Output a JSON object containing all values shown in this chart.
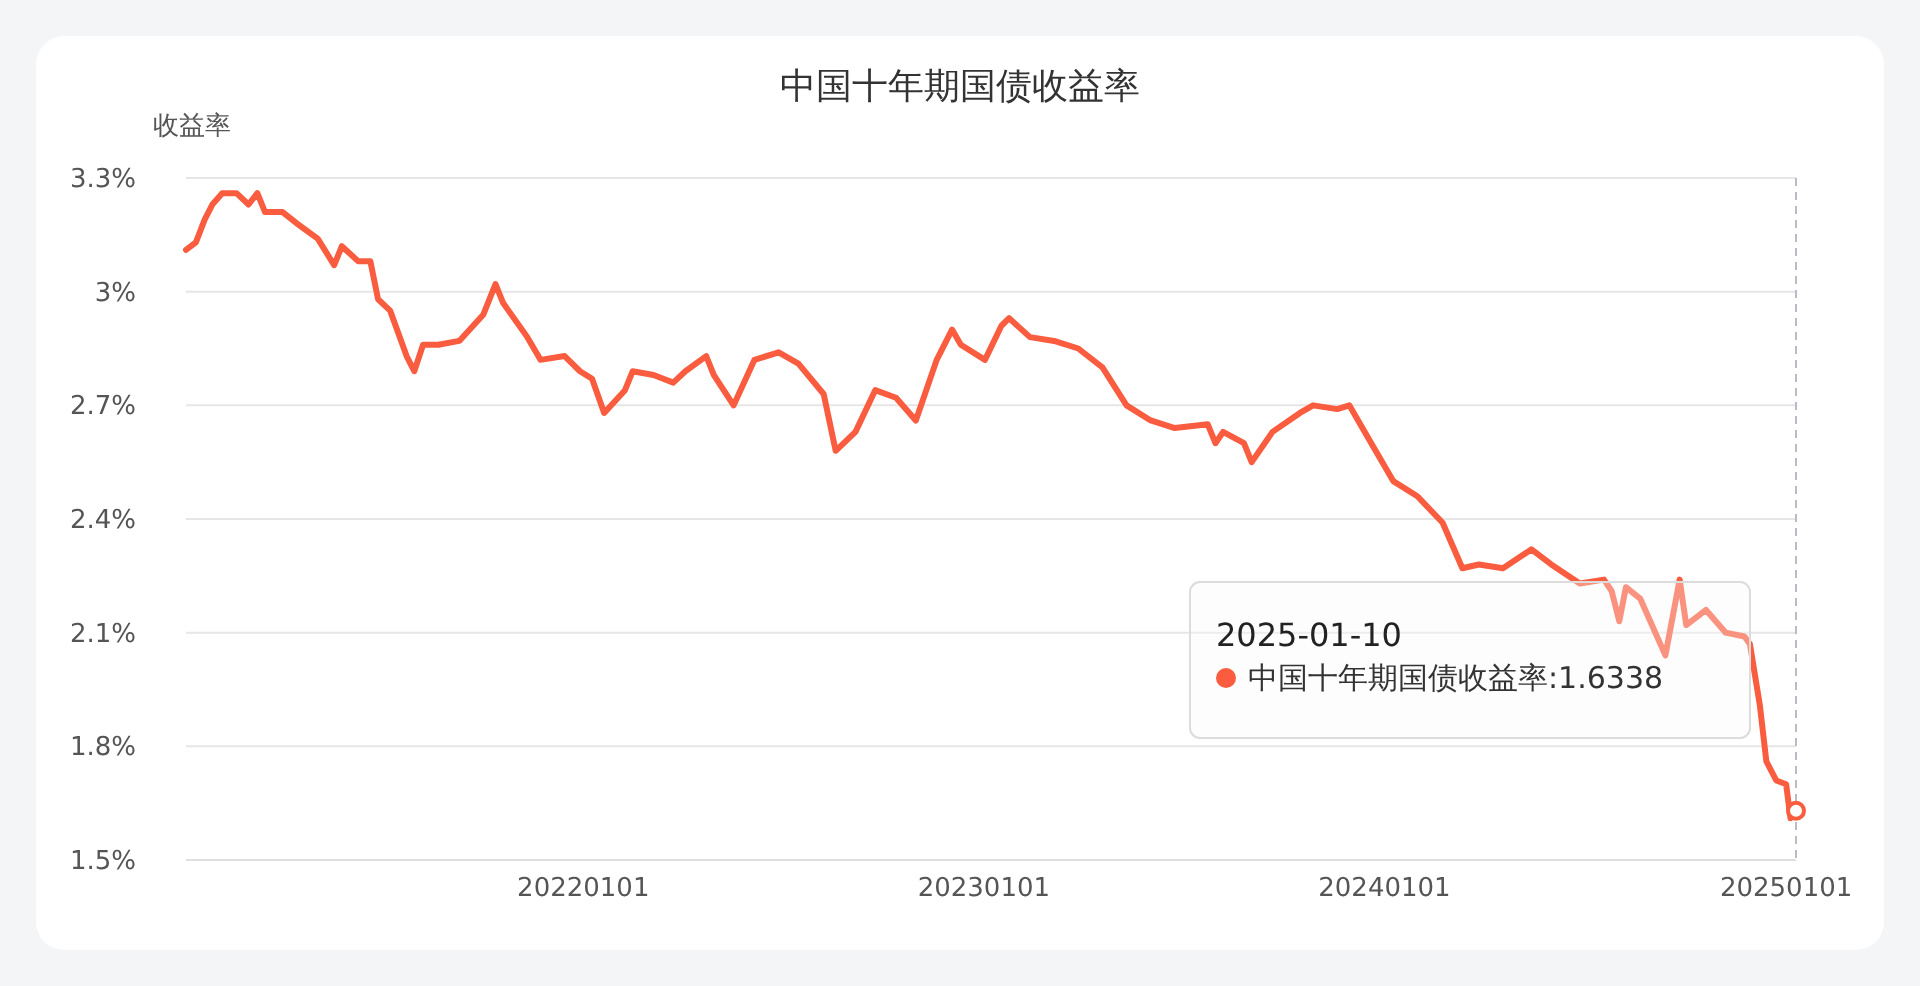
{
  "chart_data": {
    "type": "line",
    "title": "中国十年期国债收益率",
    "ylabel": "收益率",
    "xlim": [
      "2021-01-04",
      "2025-01-10"
    ],
    "xticks": [
      {
        "value": "2022-01-01",
        "label": "20220101"
      },
      {
        "value": "2023-01-01",
        "label": "20230101"
      },
      {
        "value": "2024-01-01",
        "label": "20240101"
      },
      {
        "value": "2025-01-01",
        "label": "20250101"
      }
    ],
    "ylim": [
      1.5,
      3.3
    ],
    "yticks": [
      {
        "value": 1.5,
        "label": "1.5%"
      },
      {
        "value": 1.8,
        "label": "1.8%"
      },
      {
        "value": 2.1,
        "label": "2.1%"
      },
      {
        "value": 2.4,
        "label": "2.4%"
      },
      {
        "value": 2.7,
        "label": "2.7%"
      },
      {
        "value": 3,
        "label": "3%"
      },
      {
        "value": 3.3,
        "label": "3.3%"
      }
    ],
    "grid": "y",
    "marker": "none",
    "line_style": "solid",
    "ref_lines": [
      {
        "axis": "x",
        "value": "2025-01-10",
        "color": "#b8bcc8",
        "line_style": "dashed"
      }
    ],
    "annotations": [
      "2025-01-10",
      "中国十年期国债收益率:1.6338"
    ],
    "x": [
      "2021-01-04",
      "2021-01-13",
      "2021-01-21",
      "2021-01-28",
      "2021-02-06",
      "2021-02-19",
      "2021-03-02",
      "2021-03-10",
      "2021-03-17",
      "2021-04-02",
      "2021-04-15",
      "2021-05-04",
      "2021-05-19",
      "2021-05-26",
      "2021-06-10",
      "2021-06-21",
      "2021-06-28",
      "2021-07-09",
      "2021-07-24",
      "2021-07-31",
      "2021-08-08",
      "2021-08-22",
      "2021-09-10",
      "2021-10-02",
      "2021-10-13",
      "2021-10-20",
      "2021-11-11",
      "2021-11-23",
      "2021-12-15",
      "2021-12-29",
      "2022-01-09",
      "2022-01-20",
      "2022-02-08",
      "2022-02-15",
      "2022-03-06",
      "2022-03-24",
      "2022-04-04",
      "2022-04-23",
      "2022-04-30",
      "2022-05-18",
      "2022-06-06",
      "2022-06-28",
      "2022-07-16",
      "2022-08-08",
      "2022-08-19",
      "2022-09-06",
      "2022-09-24",
      "2022-10-13",
      "2022-10-31",
      "2022-11-19",
      "2022-12-03",
      "2022-12-11",
      "2023-01-02",
      "2023-01-17",
      "2023-01-24",
      "2023-02-12",
      "2023-03-06",
      "2023-03-28",
      "2023-04-19",
      "2023-05-11",
      "2023-06-02",
      "2023-06-24",
      "2023-07-24",
      "2023-07-31",
      "2023-08-07",
      "2023-08-26",
      "2023-09-02",
      "2023-09-21",
      "2023-10-16",
      "2023-10-28",
      "2023-11-19",
      "2023-11-30",
      "2023-12-18",
      "2024-01-09",
      "2024-01-31",
      "2024-02-23",
      "2024-03-12",
      "2024-03-27",
      "2024-04-18",
      "2024-05-14",
      "2024-06-01",
      "2024-06-27",
      "2024-07-19",
      "2024-07-26",
      "2024-08-02",
      "2024-08-08",
      "2024-08-21",
      "2024-09-13",
      "2024-09-26",
      "2024-10-02",
      "2024-10-20",
      "2024-11-07",
      "2024-11-24",
      "2024-11-29",
      "2024-12-08",
      "2024-12-14",
      "2024-12-23",
      "2025-01-01",
      "2025-01-05",
      "2025-01-10"
    ],
    "series": [
      {
        "color": "#f95c3f",
        "values": [
          3.11,
          3.13,
          3.19,
          3.23,
          3.26,
          3.26,
          3.23,
          3.26,
          3.21,
          3.21,
          3.18,
          3.14,
          3.07,
          3.12,
          3.08,
          3.08,
          2.98,
          2.95,
          2.83,
          2.79,
          2.86,
          2.86,
          2.87,
          2.94,
          3.02,
          2.97,
          2.88,
          2.82,
          2.83,
          2.79,
          2.77,
          2.68,
          2.74,
          2.79,
          2.78,
          2.76,
          2.79,
          2.83,
          2.78,
          2.7,
          2.82,
          2.84,
          2.81,
          2.73,
          2.58,
          2.63,
          2.74,
          2.72,
          2.66,
          2.82,
          2.9,
          2.86,
          2.82,
          2.91,
          2.93,
          2.88,
          2.87,
          2.85,
          2.8,
          2.7,
          2.66,
          2.64,
          2.65,
          2.6,
          2.63,
          2.6,
          2.55,
          2.63,
          2.68,
          2.7,
          2.69,
          2.7,
          2.61,
          2.5,
          2.46,
          2.39,
          2.27,
          2.28,
          2.27,
          2.32,
          2.28,
          2.23,
          2.24,
          2.21,
          2.13,
          2.22,
          2.19,
          2.04,
          2.24,
          2.12,
          2.16,
          2.1,
          2.09,
          2.07,
          1.91,
          1.76,
          1.71,
          1.7,
          1.61,
          1.63
        ]
      }
    ]
  }
}
